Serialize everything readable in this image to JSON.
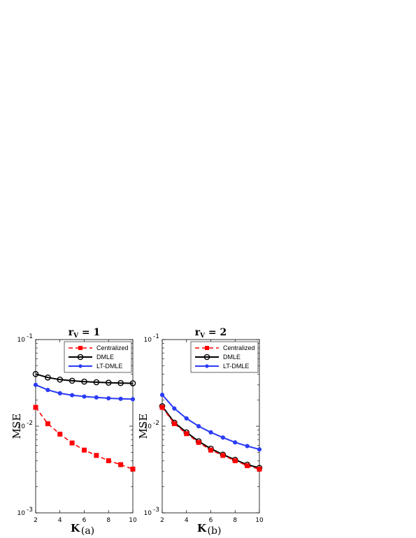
{
  "chart_data": [
    {
      "type": "line",
      "title": "r_V = 1",
      "title_main": "r",
      "title_sub": "V",
      "title_rest": " = 1",
      "xlabel": "K",
      "ylabel": "MSE",
      "caption": "(a)",
      "x": [
        2,
        3,
        4,
        5,
        6,
        7,
        8,
        9,
        10
      ],
      "xlim": [
        2,
        10
      ],
      "ylim": [
        0.001,
        0.1
      ],
      "yscale": "log",
      "xticks": [
        "2",
        "4",
        "6",
        "8",
        "10"
      ],
      "yticks": [
        {
          "base": "10",
          "exp": "-1"
        },
        {
          "base": "10",
          "exp": "-2"
        },
        {
          "base": "10",
          "exp": "-3"
        }
      ],
      "legend_position": "top-right",
      "series": [
        {
          "name": "Centralized",
          "color": "#ff0000",
          "line": "dashed",
          "marker": "square",
          "values": [
            0.0165,
            0.0107,
            0.0081,
            0.0064,
            0.0053,
            0.0046,
            0.004,
            0.0036,
            0.0032
          ]
        },
        {
          "name": "DMLE",
          "color": "#000000",
          "line": "solid",
          "marker": "circle",
          "values": [
            0.04,
            0.0365,
            0.0345,
            0.0335,
            0.0327,
            0.0322,
            0.0318,
            0.0315,
            0.0313
          ]
        },
        {
          "name": "LT-DMLE",
          "color": "#2b3cf5",
          "line": "solid",
          "marker": "dot",
          "values": [
            0.03,
            0.0262,
            0.024,
            0.0228,
            0.022,
            0.0215,
            0.021,
            0.0207,
            0.0205
          ]
        }
      ]
    },
    {
      "type": "line",
      "title": "r_V = 2",
      "title_main": "r",
      "title_sub": "V",
      "title_rest": " = 2",
      "xlabel": "K",
      "ylabel": "MSE",
      "caption": "(b)",
      "x": [
        2,
        3,
        4,
        5,
        6,
        7,
        8,
        9,
        10
      ],
      "xlim": [
        2,
        10
      ],
      "ylim": [
        0.001,
        0.1
      ],
      "yscale": "log",
      "xticks": [
        "2",
        "4",
        "6",
        "8",
        "10"
      ],
      "yticks": [
        {
          "base": "10",
          "exp": "-1"
        },
        {
          "base": "10",
          "exp": "-2"
        },
        {
          "base": "10",
          "exp": "-3"
        }
      ],
      "legend_position": "top-right",
      "series": [
        {
          "name": "Centralized",
          "color": "#ff0000",
          "line": "dashed",
          "marker": "square",
          "values": [
            0.0165,
            0.0107,
            0.0082,
            0.0065,
            0.0053,
            0.0046,
            0.004,
            0.0035,
            0.0032
          ]
        },
        {
          "name": "DMLE",
          "color": "#000000",
          "line": "solid",
          "marker": "circle",
          "values": [
            0.017,
            0.011,
            0.0085,
            0.0067,
            0.0055,
            0.0047,
            0.0041,
            0.0036,
            0.0033
          ]
        },
        {
          "name": "LT-DMLE",
          "color": "#2b3cf5",
          "line": "solid",
          "marker": "dot",
          "values": [
            0.023,
            0.016,
            0.0123,
            0.01,
            0.0085,
            0.0074,
            0.0065,
            0.0059,
            0.0054
          ]
        }
      ]
    }
  ]
}
